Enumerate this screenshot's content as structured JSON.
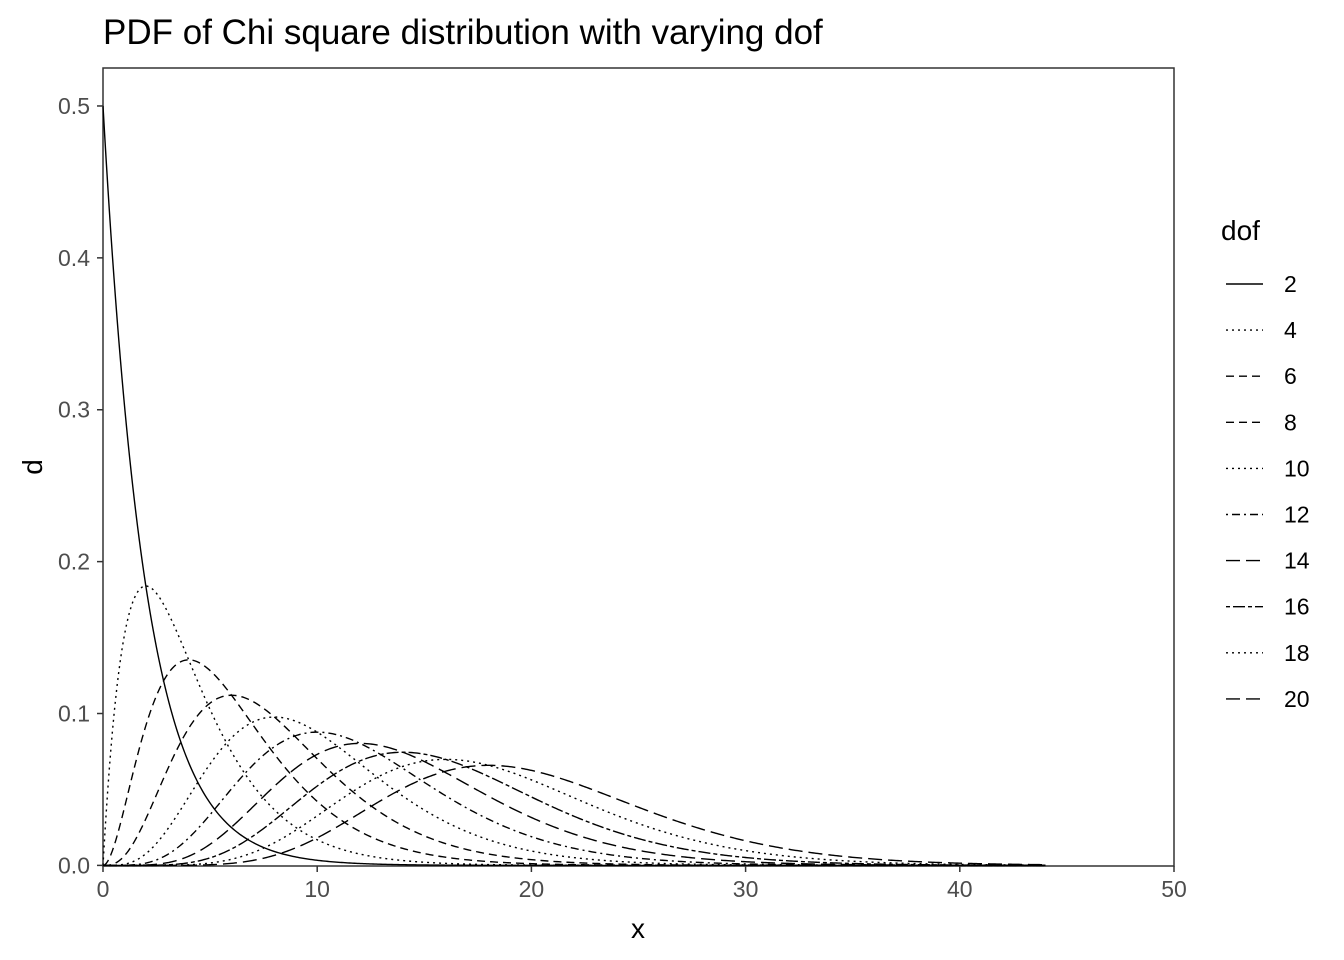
{
  "chart_data": {
    "type": "line",
    "title": "PDF of Chi square distribution with varying dof",
    "xlabel": "x",
    "ylabel": "d",
    "xlim": [
      0,
      50
    ],
    "ylim": [
      0,
      0.5
    ],
    "x_ticks": [
      "0",
      "10",
      "20",
      "30",
      "40",
      "50"
    ],
    "y_ticks": [
      "0.0",
      "0.1",
      "0.2",
      "0.3",
      "0.4",
      "0.5"
    ],
    "x_range_of_curves": [
      0,
      44
    ],
    "grid": false,
    "legend": {
      "title": "dof",
      "placement": "right"
    },
    "line_color": "#000000",
    "series": [
      {
        "name": "2",
        "dof": 2,
        "dash": "solid",
        "peak": {
          "x": 0,
          "y": 0.488
        }
      },
      {
        "name": "4",
        "dof": 4,
        "dash": "dotted",
        "peak": {
          "x": 2,
          "y": 0.184
        }
      },
      {
        "name": "6",
        "dof": 6,
        "dash": "dashed",
        "peak": {
          "x": 4,
          "y": 0.135
        }
      },
      {
        "name": "8",
        "dof": 8,
        "dash": "dashed",
        "peak": {
          "x": 6,
          "y": 0.112
        }
      },
      {
        "name": "10",
        "dof": 10,
        "dash": "dotted",
        "peak": {
          "x": 8,
          "y": 0.098
        }
      },
      {
        "name": "12",
        "dof": 12,
        "dash": "dotdash",
        "peak": {
          "x": 10,
          "y": 0.088
        }
      },
      {
        "name": "14",
        "dof": 14,
        "dash": "longdash",
        "peak": {
          "x": 12,
          "y": 0.081
        }
      },
      {
        "name": "16",
        "dof": 16,
        "dash": "twodash",
        "peak": {
          "x": 14,
          "y": 0.075
        }
      },
      {
        "name": "18",
        "dof": 18,
        "dash": "dotted",
        "peak": {
          "x": 16,
          "y": 0.07
        }
      },
      {
        "name": "20",
        "dof": 20,
        "dash": "longdash",
        "peak": {
          "x": 18,
          "y": 0.066
        }
      }
    ]
  }
}
